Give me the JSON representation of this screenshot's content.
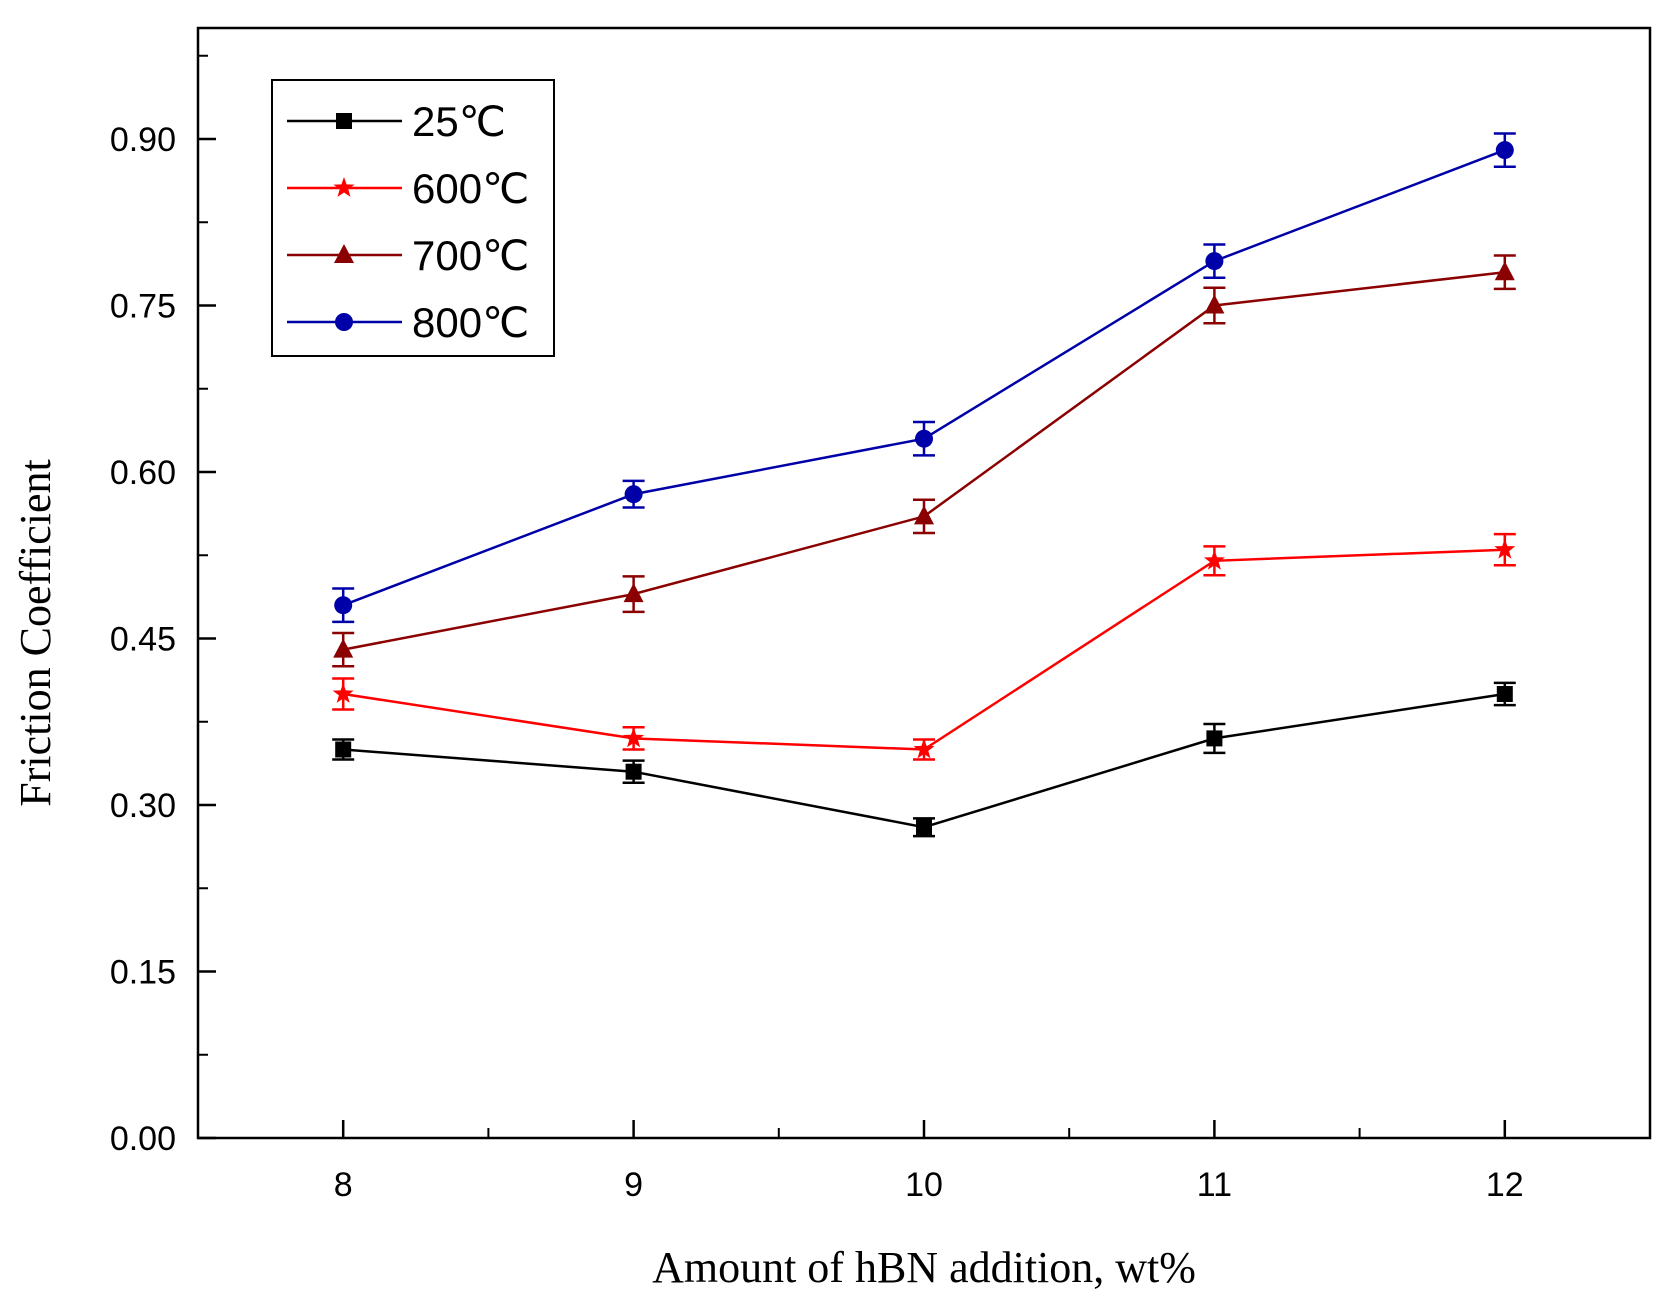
{
  "chart_data": {
    "type": "line",
    "title": "",
    "xlabel": "Amount of hBN addition, wt%",
    "ylabel": "Friction Coefficient",
    "x": [
      8,
      9,
      10,
      11,
      12
    ],
    "xlim": [
      7.5,
      12.5
    ],
    "ylim": [
      0,
      1.0
    ],
    "x_ticks": [
      8,
      9,
      10,
      11,
      12
    ],
    "x_tick_labels": [
      "8",
      "9",
      "10",
      "11",
      "12"
    ],
    "y_ticks": [
      0,
      0.15,
      0.3,
      0.45,
      0.6,
      0.75,
      0.9
    ],
    "y_tick_labels": [
      "0.00",
      "0.15",
      "0.30",
      "0.45",
      "0.60",
      "0.75",
      "0.90"
    ],
    "grid": false,
    "legend_position": "top-left",
    "series": [
      {
        "name": "25℃",
        "color": "#000000",
        "marker": "square",
        "values": [
          0.35,
          0.33,
          0.28,
          0.36,
          0.4
        ],
        "errors": [
          0.009,
          0.01,
          0.008,
          0.013,
          0.01
        ]
      },
      {
        "name": "600℃",
        "color": "#ff0000",
        "marker": "star",
        "values": [
          0.4,
          0.36,
          0.35,
          0.52,
          0.53
        ],
        "errors": [
          0.014,
          0.01,
          0.009,
          0.013,
          0.014
        ]
      },
      {
        "name": "700℃",
        "color": "#8b0000",
        "marker": "triangle",
        "values": [
          0.44,
          0.49,
          0.56,
          0.75,
          0.78
        ],
        "errors": [
          0.015,
          0.016,
          0.015,
          0.016,
          0.015
        ]
      },
      {
        "name": "800℃",
        "color": "#0000a8",
        "marker": "circle",
        "values": [
          0.48,
          0.58,
          0.63,
          0.79,
          0.89
        ],
        "errors": [
          0.015,
          0.012,
          0.015,
          0.015,
          0.015
        ]
      }
    ]
  }
}
